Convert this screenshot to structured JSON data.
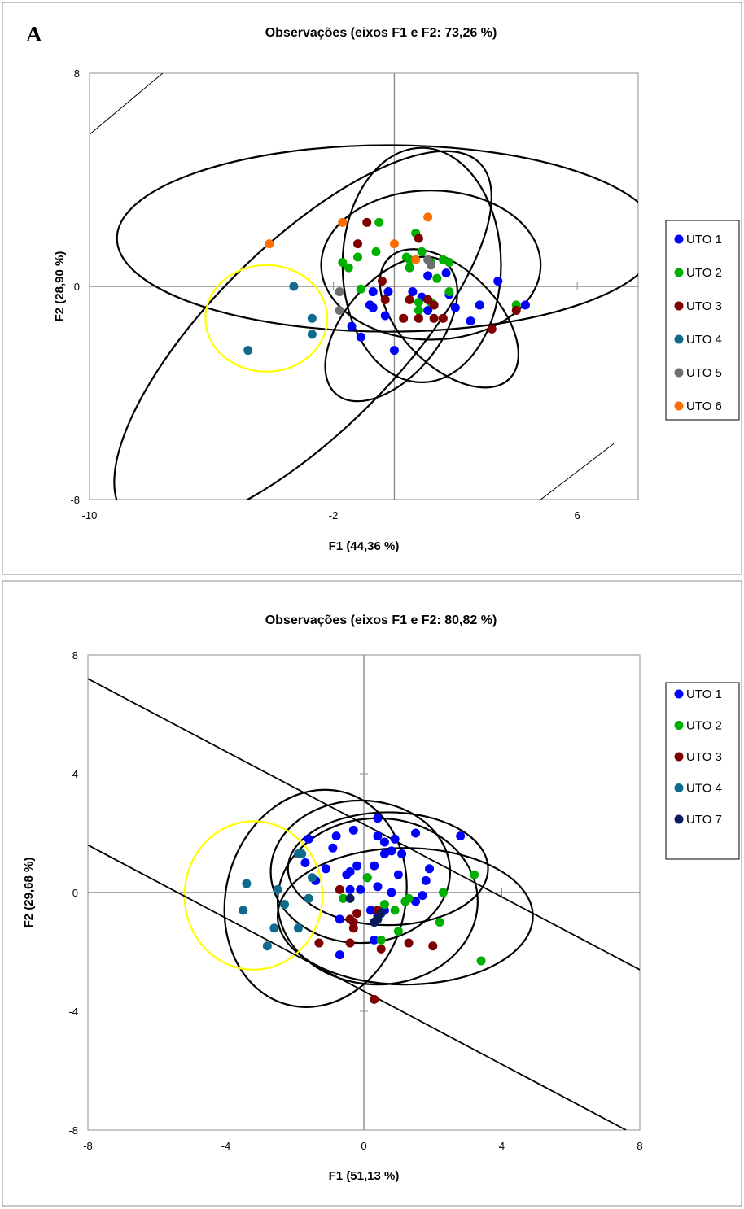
{
  "figure": {
    "panel_letter": "A"
  },
  "chart_data": [
    {
      "type": "scatter",
      "title": "Observações (eixos F1 e F2: 73,26 %)",
      "xlabel": "F1 (44,36 %)",
      "ylabel": "F2 (28,90 %)",
      "xlim": [
        -10,
        8
      ],
      "ylim": [
        -8,
        8
      ],
      "x_ticks": [
        -10,
        -2,
        6
      ],
      "y_ticks": [
        -8,
        0,
        8
      ],
      "grid": false,
      "legend_position": "right",
      "series": [
        {
          "name": "UTO 1",
          "color": "#0000FF",
          "points": [
            [
              -0.7,
              -0.2
            ],
            [
              -0.2,
              -0.2
            ],
            [
              0.6,
              -0.2
            ],
            [
              -0.8,
              -0.7
            ],
            [
              -0.3,
              -1.1
            ],
            [
              -0.7,
              -0.8
            ],
            [
              -1.4,
              -1.5
            ],
            [
              -1.1,
              -1.9
            ],
            [
              0,
              -2.4
            ],
            [
              1.1,
              0.4
            ],
            [
              0.9,
              -0.4
            ],
            [
              1.1,
              -0.9
            ],
            [
              1.7,
              0.5
            ],
            [
              2,
              -0.8
            ],
            [
              2.8,
              -0.7
            ],
            [
              1.8,
              -0.3
            ],
            [
              2.5,
              -1.3
            ],
            [
              3.4,
              0.2
            ],
            [
              4.3,
              -0.7
            ],
            [
              1.3,
              -0.7
            ]
          ]
        },
        {
          "name": "UTO 2",
          "color": "#00B000",
          "points": [
            [
              -0.5,
              2.4
            ],
            [
              0.7,
              2.0
            ],
            [
              0.9,
              1.3
            ],
            [
              1.2,
              0.9
            ],
            [
              1.6,
              1.0
            ],
            [
              1.8,
              0.9
            ],
            [
              1.4,
              0.3
            ],
            [
              1.8,
              -0.2
            ],
            [
              -1.7,
              0.9
            ],
            [
              -1.5,
              0.7
            ],
            [
              -1.2,
              1.1
            ],
            [
              -0.6,
              1.3
            ],
            [
              0.4,
              1.1
            ],
            [
              0.5,
              1.0
            ],
            [
              0.5,
              0.7
            ],
            [
              0.8,
              -0.6
            ],
            [
              1.2,
              -0.6
            ],
            [
              0.8,
              -0.9
            ],
            [
              -1.1,
              -0.1
            ],
            [
              4,
              -0.7
            ]
          ]
        },
        {
          "name": "UTO 3",
          "color": "#7F0000",
          "points": [
            [
              -0.9,
              2.4
            ],
            [
              -1.2,
              1.6
            ],
            [
              0.8,
              1.8
            ],
            [
              -0.4,
              0.2
            ],
            [
              -0.3,
              -0.5
            ],
            [
              0.5,
              -0.5
            ],
            [
              1.1,
              -0.5
            ],
            [
              1.3,
              -0.7
            ],
            [
              0.3,
              -1.2
            ],
            [
              0.8,
              -1.2
            ],
            [
              1.3,
              -1.2
            ],
            [
              1.6,
              -1.2
            ],
            [
              3.2,
              -1.6
            ],
            [
              4,
              -0.9
            ]
          ]
        },
        {
          "name": "UTO 4",
          "color": "#0F6A8C",
          "points": [
            [
              -3.3,
              0
            ],
            [
              -2.7,
              -1.2
            ],
            [
              -2.7,
              -1.8
            ],
            [
              -4.8,
              -2.4
            ]
          ]
        },
        {
          "name": "UTO 5",
          "color": "#6E6E6E",
          "points": [
            [
              -1.8,
              -0.2
            ],
            [
              -1.8,
              -0.9
            ],
            [
              1.1,
              1.0
            ],
            [
              1.2,
              0.8
            ]
          ]
        },
        {
          "name": "UTO 6",
          "color": "#FF6E00",
          "points": [
            [
              -4.1,
              1.6
            ],
            [
              -1.7,
              2.4
            ],
            [
              0,
              1.6
            ],
            [
              1.1,
              2.6
            ],
            [
              0.7,
              1.0
            ]
          ]
        }
      ],
      "ellipses": [
        {
          "color": "#000000",
          "cx": -0.2,
          "cy": 1.8,
          "rx": 8.9,
          "ry": 3.5,
          "angle_deg": 0
        },
        {
          "color": "#000000",
          "cx": -3.0,
          "cy": -2.0,
          "rx": 8.2,
          "ry": 3.5,
          "angle_deg": 45
        },
        {
          "color": "#000000",
          "cx": 0.9,
          "cy": 0.8,
          "rx": 2.6,
          "ry": 4.4,
          "angle_deg": 0
        },
        {
          "color": "#000000",
          "cx": 1.2,
          "cy": 0.8,
          "rx": 3.6,
          "ry": 2.8,
          "angle_deg": 0
        },
        {
          "color": "#000000",
          "cx": -0.1,
          "cy": -1.6,
          "rx": 2.8,
          "ry": 1.8,
          "angle_deg": 50
        },
        {
          "color": "#000000",
          "cx": 1.8,
          "cy": -1.2,
          "rx": 2.8,
          "ry": 1.8,
          "angle_deg": -45
        },
        {
          "color": "#FFFF00",
          "cx": -4.2,
          "cy": -1.2,
          "rx": 2.0,
          "ry": 2.0,
          "angle_deg": 0
        }
      ],
      "lines": [
        {
          "x1": -10,
          "y1": 5.7,
          "x2": -7.6,
          "y2": 8
        },
        {
          "x1": 4.8,
          "y1": -8,
          "x2": 7.2,
          "y2": -5.9
        }
      ]
    },
    {
      "type": "scatter",
      "title": "Observações (eixos F1 e F2: 80,82 %)",
      "xlabel": "F1 (51,13 %)",
      "ylabel": "F2 (29,68 %)",
      "xlim": [
        -8,
        8
      ],
      "ylim": [
        -8,
        8
      ],
      "x_ticks": [
        -8,
        -4,
        0,
        4,
        8
      ],
      "y_ticks": [
        -8,
        -4,
        0,
        4,
        8
      ],
      "grid": false,
      "legend_position": "right",
      "series": [
        {
          "name": "UTO 1",
          "color": "#0000FF",
          "points": [
            [
              0.4,
              2.5
            ],
            [
              1.5,
              2.0
            ],
            [
              2.8,
              1.9
            ],
            [
              -1.6,
              1.8
            ],
            [
              -0.8,
              1.9
            ],
            [
              -0.3,
              2.1
            ],
            [
              0.4,
              1.9
            ],
            [
              0.6,
              1.7
            ],
            [
              0.9,
              1.8
            ],
            [
              -0.9,
              1.5
            ],
            [
              -1.7,
              1.0
            ],
            [
              0.6,
              1.3
            ],
            [
              0.8,
              1.4
            ],
            [
              1.1,
              1.3
            ],
            [
              -1.1,
              0.8
            ],
            [
              -0.4,
              0.7
            ],
            [
              -0.2,
              0.9
            ],
            [
              0.3,
              0.9
            ],
            [
              -0.5,
              0.6
            ],
            [
              0.1,
              0.5
            ],
            [
              1.0,
              0.6
            ],
            [
              1.9,
              0.8
            ],
            [
              -1.4,
              0.4
            ],
            [
              0.4,
              0.2
            ],
            [
              0.8,
              0.0
            ],
            [
              1.8,
              0.4
            ],
            [
              -0.4,
              0.1
            ],
            [
              -0.1,
              0.1
            ],
            [
              1.7,
              -0.1
            ],
            [
              1.5,
              -0.3
            ],
            [
              0.2,
              -0.6
            ],
            [
              0.6,
              -0.6
            ],
            [
              -0.7,
              -0.9
            ],
            [
              0.4,
              -0.8
            ],
            [
              0.3,
              -1.0
            ],
            [
              -0.7,
              -2.1
            ],
            [
              0.3,
              -1.6
            ]
          ]
        },
        {
          "name": "UTO 2",
          "color": "#00B000",
          "points": [
            [
              3.2,
              0.6
            ],
            [
              2.3,
              0.0
            ],
            [
              0.1,
              0.5
            ],
            [
              -0.6,
              -0.2
            ],
            [
              1.2,
              -0.3
            ],
            [
              1.3,
              -0.2
            ],
            [
              0.6,
              -0.4
            ],
            [
              0.9,
              -0.6
            ],
            [
              1.0,
              -1.3
            ],
            [
              2.2,
              -1.0
            ],
            [
              0.5,
              -1.6
            ],
            [
              3.4,
              -2.3
            ]
          ]
        },
        {
          "name": "UTO 3",
          "color": "#7F0000",
          "points": [
            [
              -0.7,
              0.1
            ],
            [
              -0.2,
              -0.7
            ],
            [
              -0.3,
              -1.0
            ],
            [
              -0.3,
              -1.2
            ],
            [
              -0.4,
              -0.9
            ],
            [
              0.4,
              -0.6
            ],
            [
              -0.4,
              -1.7
            ],
            [
              0.5,
              -1.9
            ],
            [
              1.3,
              -1.7
            ],
            [
              2.0,
              -1.8
            ],
            [
              -1.3,
              -1.7
            ],
            [
              0.3,
              -3.6
            ]
          ]
        },
        {
          "name": "UTO 4",
          "color": "#0F6A8C",
          "points": [
            [
              -1.8,
              1.3
            ],
            [
              -1.9,
              1.3
            ],
            [
              -3.4,
              0.3
            ],
            [
              -2.5,
              0.1
            ],
            [
              -1.5,
              0.5
            ],
            [
              -3.5,
              -0.6
            ],
            [
              -2.3,
              -0.4
            ],
            [
              -1.6,
              -0.2
            ],
            [
              -2.6,
              -1.2
            ],
            [
              -1.9,
              -1.2
            ],
            [
              -2.8,
              -1.8
            ]
          ]
        },
        {
          "name": "UTO 7",
          "color": "#0A1C5C",
          "points": [
            [
              -0.4,
              -0.2
            ],
            [
              0.5,
              -0.7
            ],
            [
              0.4,
              -0.9
            ],
            [
              0.3,
              -1.0
            ]
          ]
        }
      ],
      "ellipses": [
        {
          "color": "#000000",
          "cx": -1.4,
          "cy": -0.2,
          "rx": 2.6,
          "ry": 3.7,
          "angle_deg": -15
        },
        {
          "color": "#000000",
          "cx": -0.1,
          "cy": 0.7,
          "rx": 2.6,
          "ry": 2.4,
          "angle_deg": 0
        },
        {
          "color": "#000000",
          "cx": 0.7,
          "cy": 0.8,
          "rx": 2.9,
          "ry": 1.9,
          "angle_deg": 0
        },
        {
          "color": "#000000",
          "cx": 0.4,
          "cy": -0.3,
          "rx": 2.9,
          "ry": 2.8,
          "angle_deg": 0
        },
        {
          "color": "#000000",
          "cx": 1.2,
          "cy": -0.8,
          "rx": 3.7,
          "ry": 2.3,
          "angle_deg": 0
        },
        {
          "color": "#FFFF00",
          "cx": -3.2,
          "cy": -0.1,
          "rx": 2.0,
          "ry": 2.5,
          "angle_deg": 0
        }
      ],
      "lines": [
        {
          "x1": -8,
          "y1": 7.2,
          "x2": 8,
          "y2": -2.6
        },
        {
          "x1": -8,
          "y1": 1.6,
          "x2": 7.6,
          "y2": -8
        }
      ]
    }
  ]
}
